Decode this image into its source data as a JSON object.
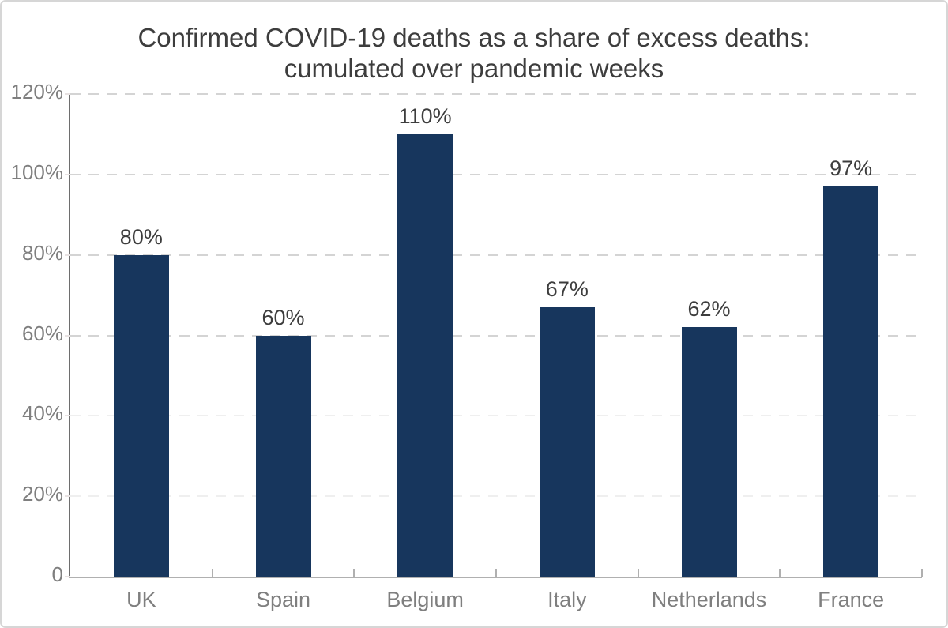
{
  "chart_data": {
    "type": "bar",
    "title": "Confirmed COVID-19 deaths as a share of excess deaths: cumulated over pandemic weeks",
    "title_lines": [
      "Confirmed COVID-19 deaths as a share of excess deaths:",
      "cumulated over pandemic weeks"
    ],
    "categories": [
      "UK",
      "Spain",
      "Belgium",
      "Italy",
      "Netherlands",
      "France"
    ],
    "values": [
      80,
      60,
      110,
      67,
      62,
      97
    ],
    "value_labels": [
      "80%",
      "60%",
      "110%",
      "67%",
      "62%",
      "97%"
    ],
    "xlabel": "",
    "ylabel": "",
    "ylim": [
      0,
      120
    ],
    "y_ticks": [
      {
        "label": "120%",
        "value": 120,
        "grid_style": "major"
      },
      {
        "label": "100%",
        "value": 100,
        "grid_style": "major"
      },
      {
        "label": "80%",
        "value": 80,
        "grid_style": "major"
      },
      {
        "label": "60%",
        "value": 60,
        "grid_style": "major"
      },
      {
        "label": "40%",
        "value": 40,
        "grid_style": "faint"
      },
      {
        "label": "20%",
        "value": 20,
        "grid_style": "faint"
      },
      {
        "label": "0",
        "value": 0,
        "grid_style": "none"
      }
    ],
    "grid": "horizontal-dashed",
    "legend": "none",
    "colors": {
      "bar": "#17365d",
      "title_text": "#3d3d3d",
      "value_label_text": "#3d3d3d",
      "tick_label_text": "#7f7f7f",
      "grid_major": "#d4d4d4",
      "grid_faint": "#efefef",
      "y_axis_line": "#6e6e6e",
      "x_axis_line": "#b0b0b0",
      "frame_border": "#d6d6d6"
    }
  }
}
